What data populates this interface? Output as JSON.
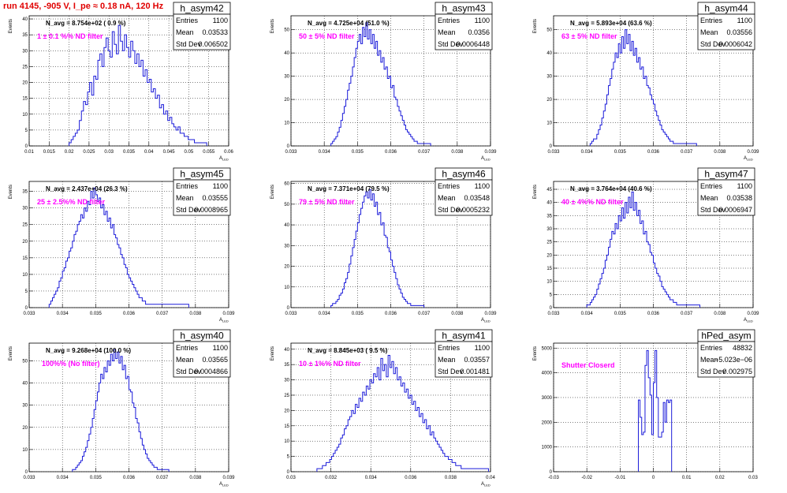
{
  "title": "run 4145,  -905 V, I_pe ≈ 0.18 nA, 120 Hz",
  "chart_data": [
    {
      "type": "histogram",
      "name": "h_asym42",
      "navg": "N_avg = 8.754e+02 ( 0.9 %)",
      "filter": "1 ± 0.1 %% ND filter",
      "entries": "1100",
      "mean": "0.03533",
      "std": "0.006502",
      "xlabel": "A_LED",
      "ylabel": "Events",
      "xlim": [
        0.01,
        0.06
      ],
      "ylim": [
        0,
        41
      ],
      "xticks": [
        0.01,
        0.015,
        0.02,
        0.025,
        0.03,
        0.035,
        0.04,
        0.045,
        0.05,
        0.055,
        0.06
      ],
      "yticks": [
        0,
        5,
        10,
        15,
        20,
        25,
        30,
        35,
        40
      ],
      "bin_lo": 0.02,
      "bin_hi": 0.0545,
      "values": [
        1,
        2,
        3,
        4,
        5,
        8,
        11,
        14,
        13,
        17,
        20,
        16,
        22,
        21,
        27,
        29,
        25,
        31,
        34,
        30,
        28,
        36,
        32,
        29,
        38,
        33,
        30,
        35,
        31,
        28,
        33,
        30,
        26,
        29,
        25,
        27,
        22,
        24,
        20,
        21,
        17,
        18,
        15,
        16,
        12,
        13,
        10,
        11,
        8,
        9,
        7,
        6,
        5,
        6,
        4,
        4,
        3,
        3,
        2,
        2,
        2,
        1,
        1,
        1,
        1,
        1,
        1
      ]
    },
    {
      "type": "histogram",
      "name": "h_asym43",
      "navg": "N_avg = 4.725e+04 (51.0 %)",
      "filter": "50 ± 5% ND filter",
      "entries": "1100",
      "mean": "0.0356",
      "std": "0.0006448",
      "xlabel": "A_LED",
      "ylabel": "Events",
      "xlim": [
        0.033,
        0.039
      ],
      "ylim": [
        0,
        56
      ],
      "xticks": [
        0.033,
        0.034,
        0.035,
        0.036,
        0.037,
        0.038,
        0.039
      ],
      "yticks": [
        0,
        10,
        20,
        30,
        40,
        50
      ],
      "bin_lo": 0.0342,
      "bin_hi": 0.0372,
      "values": [
        1,
        2,
        3,
        4,
        6,
        8,
        11,
        14,
        17,
        20,
        24,
        27,
        30,
        34,
        38,
        42,
        45,
        48,
        44,
        51,
        47,
        53,
        46,
        50,
        44,
        48,
        42,
        45,
        39,
        41,
        36,
        38,
        33,
        34,
        29,
        30,
        25,
        26,
        21,
        20,
        17,
        15,
        13,
        11,
        9,
        7,
        6,
        5,
        4,
        3,
        2,
        2,
        1,
        1,
        1,
        1,
        1,
        1,
        1,
        1
      ]
    },
    {
      "type": "histogram",
      "name": "h_asym44",
      "navg": "N_avg = 5.893e+04 (63.6 %)",
      "filter": "63 ± 5% ND filter",
      "entries": "1100",
      "mean": "0.03556",
      "std": "0.0006042",
      "xlabel": "A_LED",
      "ylabel": "Events",
      "xlim": [
        0.033,
        0.039
      ],
      "ylim": [
        0,
        56
      ],
      "xticks": [
        0.033,
        0.034,
        0.035,
        0.036,
        0.037,
        0.038,
        0.039
      ],
      "yticks": [
        0,
        10,
        20,
        30,
        40,
        50
      ],
      "bin_lo": 0.0341,
      "bin_hi": 0.0373,
      "values": [
        1,
        2,
        3,
        3,
        5,
        7,
        9,
        12,
        15,
        18,
        22,
        26,
        29,
        33,
        36,
        40,
        38,
        44,
        40,
        47,
        42,
        50,
        44,
        48,
        41,
        45,
        39,
        42,
        36,
        38,
        33,
        34,
        29,
        30,
        26,
        25,
        22,
        20,
        18,
        15,
        13,
        11,
        9,
        7,
        6,
        5,
        4,
        3,
        2,
        2,
        1,
        1,
        1,
        1,
        1,
        1,
        1,
        1,
        1,
        1,
        1,
        1,
        1,
        1
      ]
    },
    {
      "type": "histogram",
      "name": "h_asym45",
      "navg": "N_avg = 2.437e+04 (26.3 %)",
      "filter": "25 ± 2.5%% ND filter",
      "entries": "1100",
      "mean": "0.03555",
      "std": "0.0008965",
      "xlabel": "A_LED",
      "ylabel": "Events",
      "xlim": [
        0.033,
        0.039
      ],
      "ylim": [
        0,
        38
      ],
      "xticks": [
        0.033,
        0.034,
        0.035,
        0.036,
        0.037,
        0.038,
        0.039
      ],
      "yticks": [
        0,
        5,
        10,
        15,
        20,
        25,
        30,
        35
      ],
      "bin_lo": 0.0336,
      "bin_hi": 0.0378,
      "values": [
        1,
        2,
        3,
        4,
        5,
        6,
        8,
        9,
        11,
        12,
        14,
        15,
        17,
        18,
        20,
        22,
        23,
        25,
        26,
        28,
        27,
        30,
        29,
        32,
        31,
        35,
        33,
        36,
        34,
        32,
        33,
        30,
        31,
        28,
        29,
        26,
        27,
        24,
        25,
        22,
        21,
        19,
        18,
        16,
        15,
        13,
        12,
        10,
        9,
        8,
        7,
        6,
        5,
        4,
        3,
        3,
        2,
        2,
        1,
        1,
        1,
        1,
        1,
        1,
        1,
        1,
        1,
        1,
        1,
        1,
        1,
        1,
        1,
        1,
        1,
        1,
        1,
        1,
        1,
        1,
        1,
        1,
        1,
        1
      ]
    },
    {
      "type": "histogram",
      "name": "h_asym46",
      "navg": "N_avg = 7.371e+04 (79.5 %)",
      "filter": "79 ± 5% ND filter",
      "entries": "1100",
      "mean": "0.03548",
      "std": "0.0005232",
      "xlabel": "A_LED",
      "ylabel": "Events",
      "xlim": [
        0.033,
        0.039
      ],
      "ylim": [
        0,
        61
      ],
      "xticks": [
        0.033,
        0.034,
        0.035,
        0.036,
        0.037,
        0.038,
        0.039
      ],
      "yticks": [
        0,
        10,
        20,
        30,
        40,
        50,
        60
      ],
      "bin_lo": 0.0342,
      "bin_hi": 0.037,
      "values": [
        1,
        2,
        2,
        3,
        4,
        6,
        7,
        9,
        12,
        14,
        17,
        21,
        25,
        29,
        33,
        37,
        41,
        45,
        48,
        51,
        54,
        56,
        53,
        57,
        52,
        55,
        49,
        51,
        45,
        46,
        40,
        41,
        35,
        34,
        29,
        27,
        23,
        20,
        17,
        14,
        11,
        9,
        7,
        5,
        4,
        3,
        2,
        2,
        1,
        1,
        1,
        1,
        1,
        1,
        1,
        1
      ]
    },
    {
      "type": "histogram",
      "name": "h_asym47",
      "navg": "N_avg = 3.764e+04 (40.6 %)",
      "filter": "40 ± 4%% ND filter",
      "entries": "1100",
      "mean": "0.03538",
      "std": "0.0006947",
      "xlabel": "A_LED",
      "ylabel": "Events",
      "xlim": [
        0.033,
        0.039
      ],
      "ylim": [
        0,
        48
      ],
      "xticks": [
        0.033,
        0.034,
        0.035,
        0.036,
        0.037,
        0.038,
        0.039
      ],
      "yticks": [
        0,
        5,
        10,
        15,
        20,
        25,
        30,
        35,
        40,
        45
      ],
      "bin_lo": 0.034,
      "bin_hi": 0.0374,
      "values": [
        1,
        1,
        2,
        3,
        4,
        5,
        7,
        9,
        11,
        13,
        15,
        18,
        20,
        23,
        26,
        29,
        28,
        32,
        30,
        35,
        33,
        38,
        34,
        40,
        36,
        42,
        38,
        44,
        37,
        40,
        35,
        37,
        32,
        33,
        28,
        29,
        25,
        24,
        21,
        20,
        17,
        15,
        13,
        12,
        10,
        8,
        7,
        6,
        5,
        4,
        3,
        3,
        2,
        2,
        1,
        1,
        1,
        1,
        1,
        1,
        1,
        1,
        1,
        1,
        1,
        1,
        1,
        1
      ]
    },
    {
      "type": "histogram",
      "name": "h_asym40",
      "navg": "N_avg = 9.268e+04 (100.0 %)",
      "filter": "100%% (No filter)",
      "entries": "1100",
      "mean": "0.03565",
      "std": "0.0004866",
      "xlabel": "A_LED",
      "ylabel": "Events",
      "xlim": [
        0.033,
        0.039
      ],
      "ylim": [
        0,
        58
      ],
      "xticks": [
        0.033,
        0.034,
        0.035,
        0.036,
        0.037,
        0.038,
        0.039
      ],
      "yticks": [
        0,
        10,
        20,
        30,
        40,
        50
      ],
      "bin_lo": 0.0343,
      "bin_hi": 0.0372,
      "values": [
        1,
        1,
        2,
        3,
        4,
        5,
        7,
        9,
        11,
        14,
        17,
        20,
        24,
        28,
        32,
        36,
        40,
        44,
        42,
        47,
        45,
        50,
        48,
        53,
        50,
        55,
        51,
        54,
        49,
        52,
        46,
        48,
        42,
        43,
        37,
        36,
        31,
        29,
        24,
        22,
        18,
        15,
        12,
        10,
        8,
        6,
        5,
        4,
        3,
        2,
        2,
        1,
        1,
        1,
        1,
        1,
        1,
        1
      ]
    },
    {
      "type": "histogram",
      "name": "h_asym41",
      "navg": "N_avg = 8.845e+03 ( 9.5 %)",
      "filter": "10 ± 1%% ND filter",
      "entries": "1100",
      "mean": "0.03557",
      "std": "0.001481",
      "xlabel": "A_LED",
      "ylabel": "Events",
      "xlim": [
        0.03,
        0.04
      ],
      "ylim": [
        0,
        42
      ],
      "xticks": [
        0.03,
        0.032,
        0.034,
        0.036,
        0.038,
        0.04
      ],
      "yticks": [
        0,
        5,
        10,
        15,
        20,
        25,
        30,
        35,
        40
      ],
      "bin_lo": 0.0313,
      "bin_hi": 0.0399,
      "values": [
        1,
        1,
        1,
        2,
        2,
        3,
        3,
        4,
        5,
        6,
        7,
        8,
        9,
        11,
        12,
        14,
        15,
        17,
        18,
        20,
        19,
        22,
        21,
        24,
        23,
        26,
        25,
        28,
        27,
        30,
        29,
        32,
        31,
        34,
        30,
        37,
        33,
        35,
        31,
        38,
        34,
        36,
        32,
        34,
        30,
        31,
        28,
        29,
        26,
        27,
        24,
        25,
        22,
        23,
        20,
        21,
        18,
        19,
        16,
        17,
        14,
        15,
        12,
        13,
        11,
        10,
        9,
        8,
        7,
        6,
        5,
        5,
        4,
        4,
        3,
        3,
        2,
        2,
        2,
        1,
        1,
        1,
        1,
        1,
        1,
        1,
        1,
        1,
        1,
        1,
        1,
        1,
        1,
        1
      ]
    },
    {
      "type": "histogram",
      "name": "hPed_asym",
      "navg": "",
      "filter": "Shutter Closerd",
      "entries": "48832",
      "mean": "−5.023e−06",
      "std": "0.002975",
      "xlabel": "",
      "ylabel": "Events",
      "xlim": [
        -0.03,
        0.03
      ],
      "ylim": [
        0,
        5200
      ],
      "xticks": [
        -0.03,
        -0.02,
        -0.01,
        0,
        0.01,
        0.02,
        0.03
      ],
      "yticks": [
        0,
        1000,
        2000,
        3000,
        4000,
        5000
      ],
      "bin_lo": -0.0045,
      "bin_hi": 0.0055,
      "values": [
        2900,
        2200,
        1500,
        1600,
        4300,
        4900,
        3800,
        3100,
        1500,
        3600,
        4900,
        3000,
        1400,
        1400,
        1600,
        2800,
        2000,
        2900,
        2800,
        2900
      ]
    }
  ]
}
